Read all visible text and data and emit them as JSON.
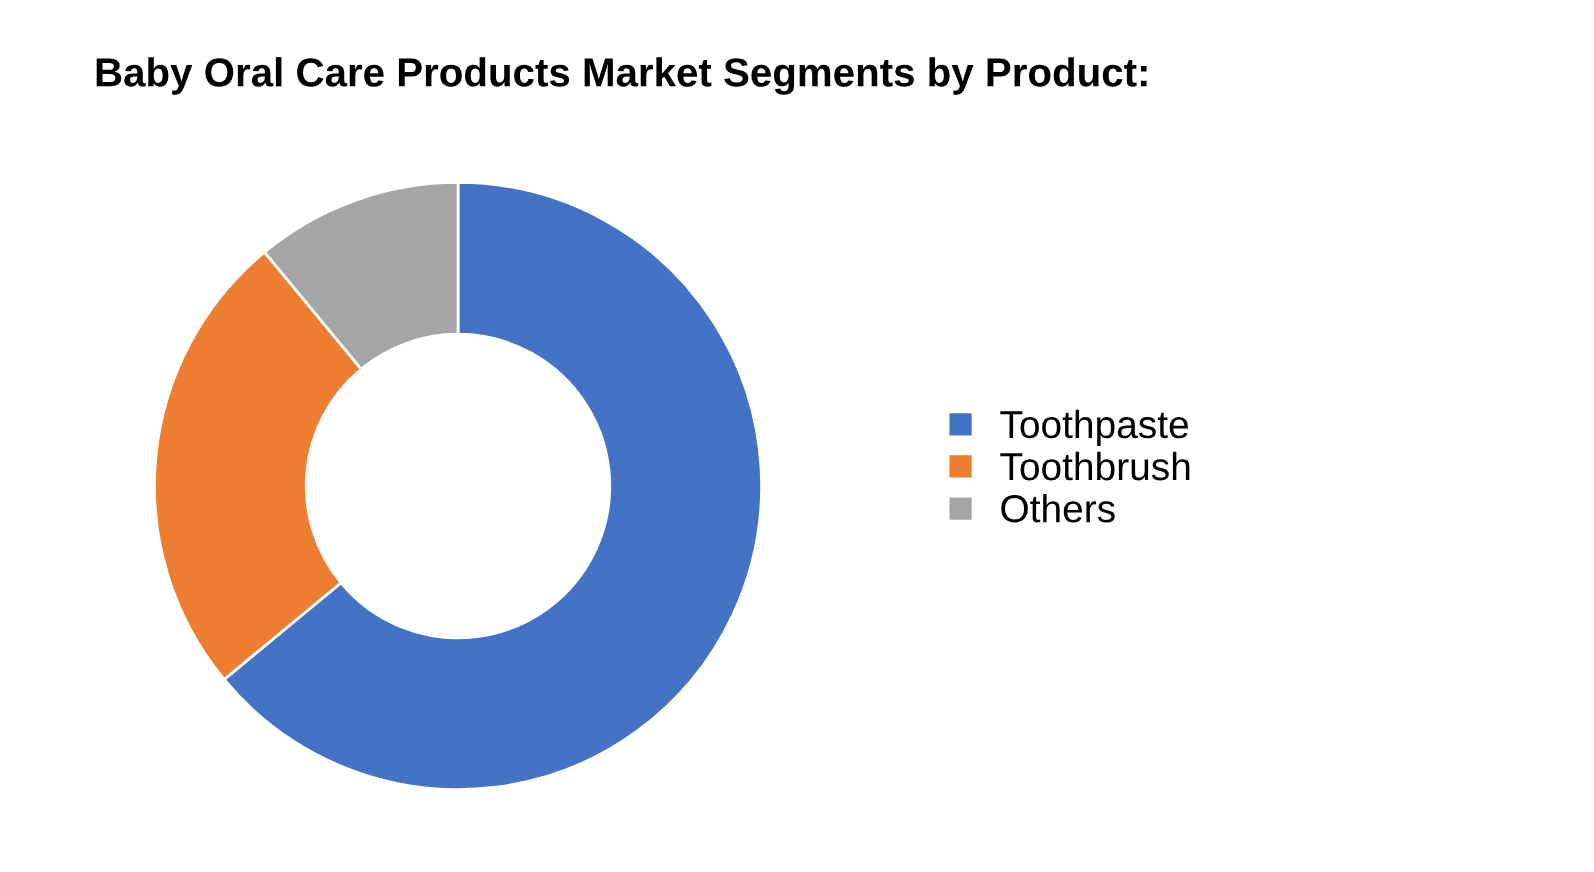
{
  "chart_data": {
    "type": "donut",
    "title": "Baby Oral Care Products Market Segments by Product:",
    "categories": [
      "Toothpaste",
      "Toothbrush",
      "Others"
    ],
    "values": [
      64,
      25,
      11
    ],
    "colors": [
      "#4472c4",
      "#ed7d31",
      "#a5a5a5"
    ],
    "legend": "right"
  }
}
